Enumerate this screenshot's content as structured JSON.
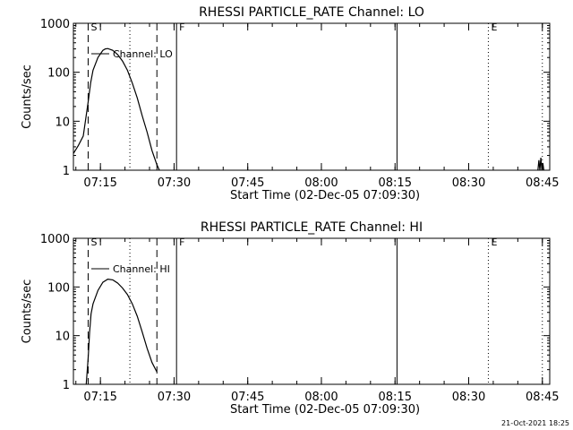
{
  "footer": {
    "timestamp": "21-Oct-2021 18:25"
  },
  "colors": {
    "background": "#ffffff",
    "foreground": "#000000"
  },
  "chart_data": [
    {
      "type": "line",
      "title": "RHESSI PARTICLE_RATE Channel: LO",
      "xlabel": "Start Time (02-Dec-05 07:09:30)",
      "ylabel": "Counts/sec",
      "x_unit": "minutes after 07:09:30",
      "xlim": [
        0,
        97
      ],
      "ylim": [
        1,
        1000
      ],
      "y_scale": "log",
      "grid": false,
      "legend": "top-left",
      "x_tick_labels": [
        "07:15",
        "07:30",
        "07:45",
        "08:00",
        "08:15",
        "08:30",
        "08:45"
      ],
      "x_tick_values": [
        5.5,
        20.5,
        35.5,
        50.5,
        65.5,
        80.5,
        95.5
      ],
      "y_tick_labels": [
        "1",
        "10",
        "100",
        "1000"
      ],
      "y_tick_values": [
        1,
        10,
        100,
        1000
      ],
      "series": [
        {
          "name": "Channel: LO",
          "x": [
            0,
            1,
            2,
            3,
            3.5,
            4,
            5,
            6,
            6.5,
            7,
            8,
            9,
            10,
            11,
            12,
            13,
            14,
            15,
            16,
            16.5,
            17,
            17.5
          ],
          "y": [
            2.2,
            3.2,
            5.0,
            25,
            60,
            110,
            200,
            280,
            300,
            305,
            280,
            230,
            170,
            110,
            60,
            30,
            13,
            6,
            2.5,
            1.8,
            1.3,
            1
          ]
        },
        {
          "name": "",
          "x": [
            94.6,
            94.8,
            95.0,
            95.2,
            95.4,
            95.6,
            95.8
          ],
          "y": [
            1,
            1.6,
            1,
            1.8,
            1,
            1.4,
            1
          ]
        }
      ],
      "event_markers": [
        {
          "label": "S",
          "x": 3.0,
          "style": "dashed"
        },
        {
          "label": "",
          "x": 11.5,
          "style": "dotted"
        },
        {
          "label": "",
          "x": 17.0,
          "style": "dashed"
        },
        {
          "label": "F",
          "x": 21.0,
          "style": "solid"
        },
        {
          "label": "",
          "x": 65.9,
          "style": "solid"
        },
        {
          "label": "E",
          "x": 84.5,
          "style": "dotted"
        },
        {
          "label": "",
          "x": 95.5,
          "style": "dotted"
        }
      ]
    },
    {
      "type": "line",
      "title": "RHESSI PARTICLE_RATE Channel: HI",
      "xlabel": "Start Time (02-Dec-05 07:09:30)",
      "ylabel": "Counts/sec",
      "x_unit": "minutes after 07:09:30",
      "xlim": [
        0,
        97
      ],
      "ylim": [
        1,
        1000
      ],
      "y_scale": "log",
      "grid": false,
      "legend": "top-left",
      "x_tick_labels": [
        "07:15",
        "07:30",
        "07:45",
        "08:00",
        "08:15",
        "08:30",
        "08:45"
      ],
      "x_tick_values": [
        5.5,
        20.5,
        35.5,
        50.5,
        65.5,
        80.5,
        95.5
      ],
      "y_tick_labels": [
        "1",
        "10",
        "100",
        "1000"
      ],
      "y_tick_values": [
        1,
        10,
        100,
        1000
      ],
      "series": [
        {
          "name": "Channel: HI",
          "x": [
            2.6,
            3.0,
            3.3,
            3.6,
            4,
            5,
            6,
            7,
            8,
            9,
            10,
            11,
            12,
            13,
            14,
            15,
            16,
            17
          ],
          "y": [
            1,
            3.5,
            12,
            28,
            45,
            85,
            125,
            145,
            140,
            120,
            95,
            70,
            45,
            25,
            12,
            5.5,
            2.8,
            1.8
          ]
        }
      ],
      "event_markers": [
        {
          "label": "S",
          "x": 3.0,
          "style": "dashed"
        },
        {
          "label": "",
          "x": 11.5,
          "style": "dotted"
        },
        {
          "label": "",
          "x": 17.0,
          "style": "dashed"
        },
        {
          "label": "F",
          "x": 21.0,
          "style": "solid"
        },
        {
          "label": "",
          "x": 65.9,
          "style": "solid"
        },
        {
          "label": "E",
          "x": 84.5,
          "style": "dotted"
        },
        {
          "label": "",
          "x": 95.5,
          "style": "dotted"
        }
      ]
    }
  ]
}
